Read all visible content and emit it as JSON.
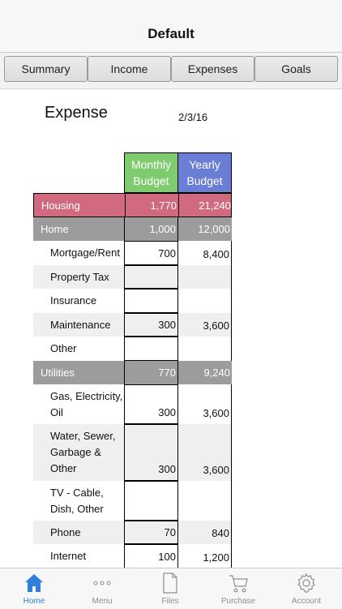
{
  "navbar": {
    "title": "Default"
  },
  "tabs": [
    {
      "label": "Summary"
    },
    {
      "label": "Income"
    },
    {
      "label": "Expenses"
    },
    {
      "label": "Goals"
    }
  ],
  "sheet": {
    "heading": "Expense",
    "date": "2/3/16",
    "columns": {
      "monthly": "Monthly Budget",
      "yearly": "Yearly Budget"
    },
    "colors": {
      "monthly_header": "#7fcc6f",
      "yearly_header": "#6b7ed6",
      "housing_row": "#d16a7e",
      "section_row": "#9c9c9c"
    }
  },
  "rows": [
    {
      "label": "Housing",
      "monthly": "1,770",
      "yearly": "21,240"
    },
    {
      "label": "Home",
      "monthly": "1,000",
      "yearly": "12,000"
    },
    {
      "label": "Mortgage/Rent",
      "monthly": "700",
      "yearly": "8,400"
    },
    {
      "label": "Property Tax",
      "monthly": "",
      "yearly": ""
    },
    {
      "label": "Insurance",
      "monthly": "",
      "yearly": ""
    },
    {
      "label": "Maintenance",
      "monthly": "300",
      "yearly": "3,600"
    },
    {
      "label": "Other",
      "monthly": "",
      "yearly": ""
    },
    {
      "label": "Utilities",
      "monthly": "770",
      "yearly": "9,240"
    },
    {
      "label_lines": [
        "Gas, Electricity,",
        "Oil"
      ],
      "monthly": "300",
      "yearly": "3,600"
    },
    {
      "label_lines": [
        "Water, Sewer,",
        "Garbage &",
        "Other"
      ],
      "monthly": "300",
      "yearly": "3,600"
    },
    {
      "label_lines": [
        "TV - Cable,",
        "Dish, Other"
      ],
      "monthly": "",
      "yearly": ""
    },
    {
      "label": "Phone",
      "monthly": "70",
      "yearly": "840"
    },
    {
      "label": "Internet",
      "monthly": "100",
      "yearly": "1,200"
    }
  ],
  "bottom_tabs": [
    {
      "label": "Home",
      "icon": "home-icon",
      "active": true
    },
    {
      "label": "Menu",
      "icon": "more-icon"
    },
    {
      "label": "Files",
      "icon": "file-icon"
    },
    {
      "label": "Purchase",
      "icon": "cart-icon"
    },
    {
      "label": "Account",
      "icon": "gear-icon"
    }
  ]
}
